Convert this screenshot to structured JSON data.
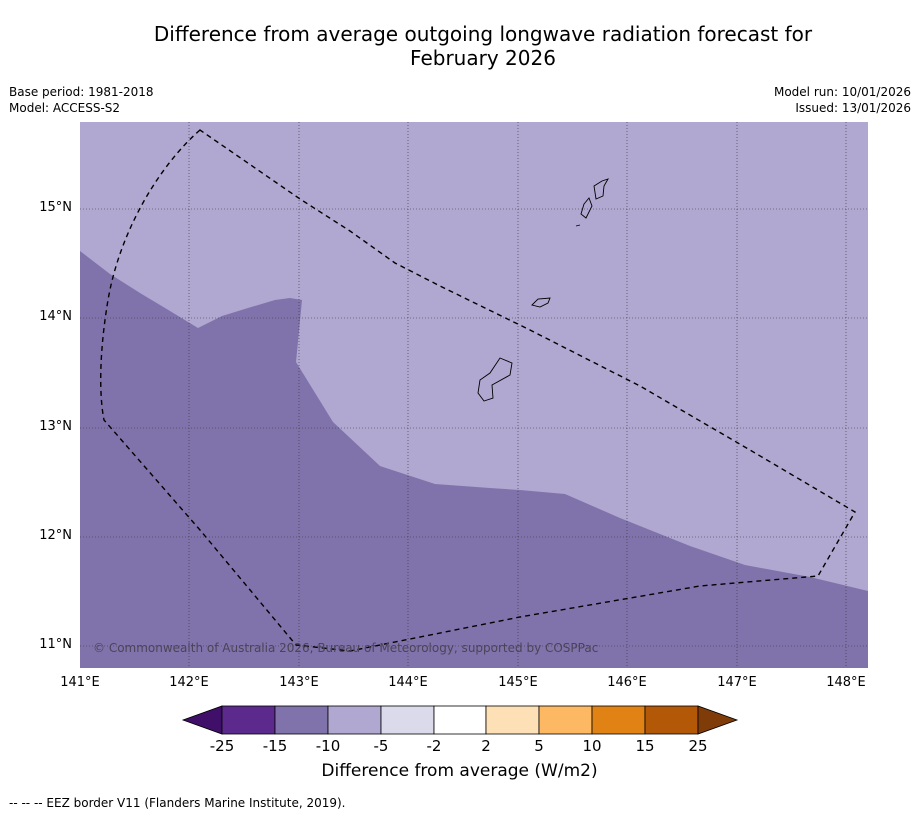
{
  "header": {
    "title_line1": "Difference from average outgoing longwave radiation forecast for",
    "title_line2": "February 2026",
    "base_period": "Base period: 1981-2018",
    "model": "Model: ACCESS-S2",
    "model_run": "Model run: 10/01/2026",
    "issued": "Issued: 13/01/2026"
  },
  "map": {
    "lat_labels": [
      "15°N",
      "14°N",
      "13°N",
      "12°N",
      "11°N"
    ],
    "lon_labels": [
      "141°E",
      "142°E",
      "143°E",
      "144°E",
      "145°E",
      "146°E",
      "147°E",
      "148°E"
    ],
    "copyright": "© Commonwealth of Australia 2026, Bureau of Meteorology, supported by COSPPac",
    "region_colors": {
      "minus_10_to_minus_5": "#b0a8d0",
      "minus_15_to_minus_10": "#8073ab"
    }
  },
  "colorbar": {
    "ticks": [
      "-25",
      "-15",
      "-10",
      "-5",
      "-2",
      "2",
      "5",
      "10",
      "15",
      "25"
    ],
    "colors": [
      "#3f0f6a",
      "#5c2a8c",
      "#8073ab",
      "#b0a8d0",
      "#dadaeb",
      "#ffffff",
      "#fee0b6",
      "#fdb863",
      "#e08214",
      "#b35806",
      "#7f3b08"
    ],
    "label": "Difference from average (W/m2)"
  },
  "legend": {
    "footnote": "--  --  -- EEZ border V11 (Flanders Marine Institute, 2019)."
  }
}
